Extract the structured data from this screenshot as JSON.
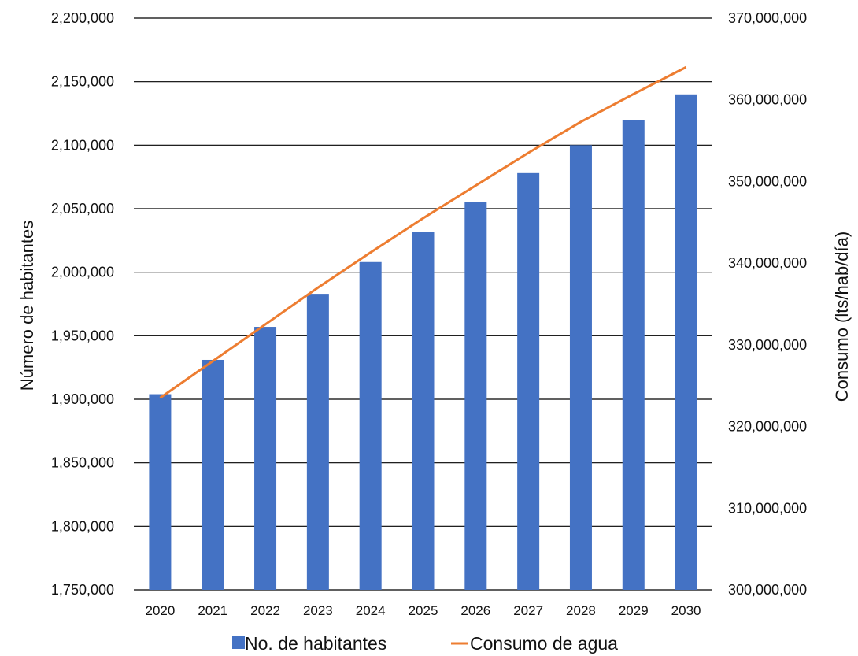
{
  "chart_data": {
    "type": "bar+line",
    "categories": [
      "2020",
      "2021",
      "2022",
      "2023",
      "2024",
      "2025",
      "2026",
      "2027",
      "2028",
      "2029",
      "2030"
    ],
    "series": [
      {
        "name": "No. de habitantes",
        "type": "bar",
        "axis": "left",
        "color": "#4472C4",
        "values": [
          1904000,
          1931000,
          1957000,
          1983000,
          2008000,
          2032000,
          2055000,
          2078000,
          2100000,
          2120000,
          2140000
        ]
      },
      {
        "name": "Consumo de agua",
        "type": "line",
        "axis": "right",
        "color": "#ED7D31",
        "values": [
          323500000,
          328000000,
          332500000,
          337000000,
          341300000,
          345500000,
          349500000,
          353500000,
          357300000,
          360700000,
          364000000
        ]
      }
    ],
    "y_left": {
      "label": "Número de habitantes",
      "lim": [
        1750000,
        2200000
      ],
      "ticks": [
        "1,750,000",
        "1,800,000",
        "1,850,000",
        "1,900,000",
        "1,950,000",
        "2,000,000",
        "2,050,000",
        "2,100,000",
        "2,150,000",
        "2,200,000"
      ]
    },
    "y_right": {
      "label": "Consumo (lts/hab/día)",
      "lim": [
        300000000,
        370000000
      ],
      "ticks": [
        "300,000,000",
        "310,000,000",
        "320,000,000",
        "330,000,000",
        "340,000,000",
        "350,000,000",
        "360,000,000",
        "370,000,000"
      ]
    },
    "grid": true,
    "legend": "bottom"
  }
}
